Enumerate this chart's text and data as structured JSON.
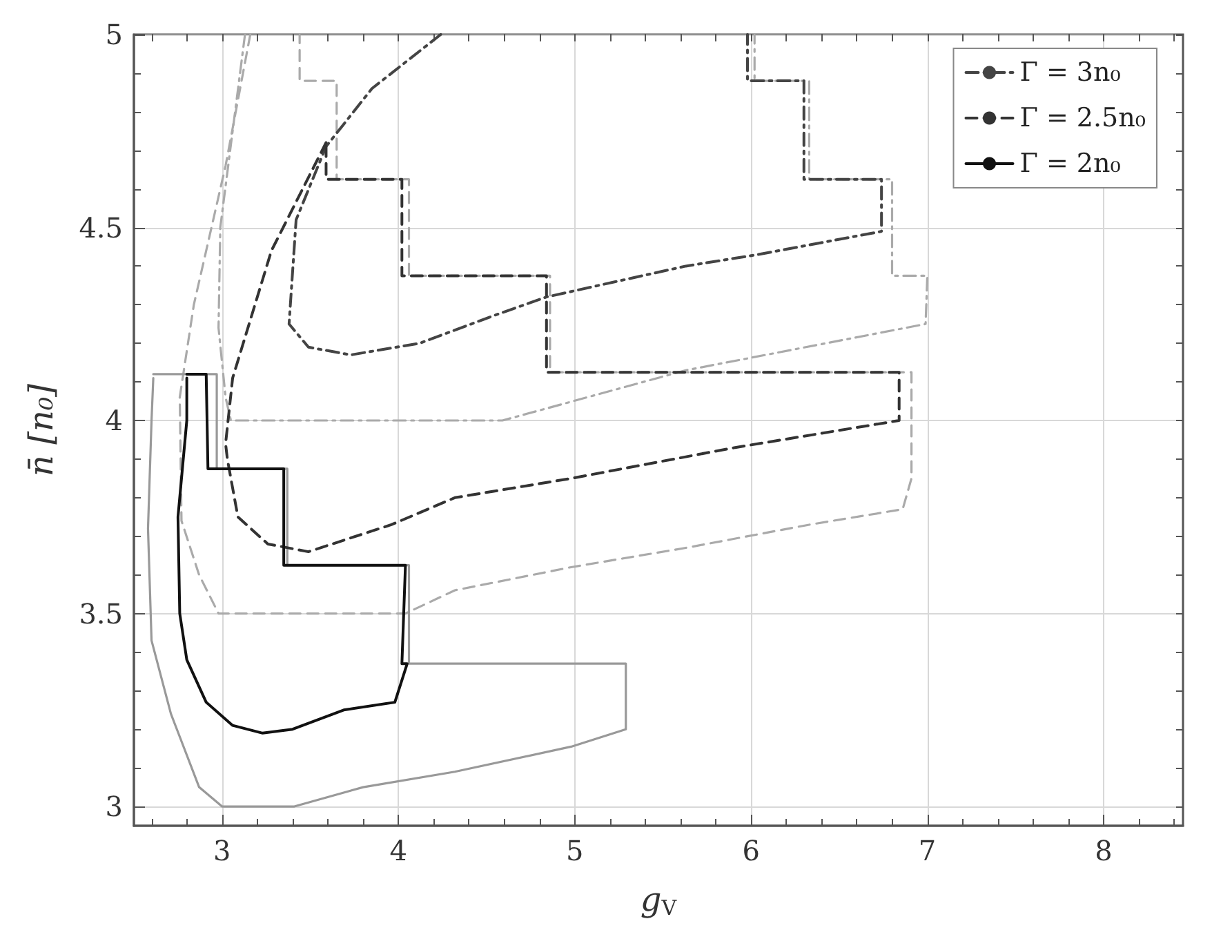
{
  "chart_data": {
    "type": "line",
    "xlabel": "g$_{V}$",
    "ylabel": "n̄ [n₀]",
    "xlim": [
      2.5,
      8.45
    ],
    "ylim": [
      2.95,
      5
    ],
    "xticks": [
      3,
      4,
      5,
      6,
      7,
      8
    ],
    "yticks": [
      3,
      3.5,
      4,
      4.5,
      5
    ],
    "grid": true,
    "legend": "top right",
    "marker": "none",
    "series": [
      {
        "name": "Γ = 3n₀",
        "color": "#444444",
        "line_style": "dashdot",
        "x": [
          4.24,
          3.85,
          3.59,
          3.42,
          3.38,
          3.49,
          3.73,
          4.12,
          4.53,
          4.84,
          5.63,
          6.04,
          6.74,
          6.74,
          6.3,
          6.3,
          5.98,
          5.98
        ],
        "values": [
          5.0,
          4.86,
          4.71,
          4.52,
          4.25,
          4.19,
          4.17,
          4.2,
          4.27,
          4.32,
          4.4,
          4.43,
          4.49,
          4.625,
          4.625,
          4.88,
          4.88,
          5.0
        ]
      },
      {
        "color": "#aaaaaa",
        "line_style": "dashdot",
        "x": [
          3.13,
          2.99,
          2.98,
          3.02,
          3.05,
          4.59,
          5.63,
          6.99,
          7.0,
          6.8,
          6.8,
          6.33,
          6.33,
          6.02,
          6.02
        ],
        "values": [
          5.0,
          4.5,
          4.24,
          4.06,
          4.0,
          4.0,
          4.13,
          4.25,
          4.375,
          4.375,
          4.625,
          4.625,
          4.88,
          4.88,
          5.0
        ]
      },
      {
        "name": "Γ = 2.5n₀",
        "color": "#333333",
        "line_style": "dashed",
        "x": [
          3.59,
          3.28,
          3.06,
          3.02,
          3.03,
          3.09,
          3.26,
          3.49,
          3.96,
          4.32,
          4.98,
          5.91,
          6.84,
          6.84,
          4.84,
          4.84,
          4.02,
          4.02,
          3.59,
          3.59
        ],
        "values": [
          4.72,
          4.44,
          4.11,
          3.94,
          3.9,
          3.75,
          3.68,
          3.66,
          3.73,
          3.8,
          3.85,
          3.93,
          4.0,
          4.125,
          4.125,
          4.375,
          4.375,
          4.625,
          4.625,
          4.71
        ]
      },
      {
        "color": "#aaaaaa",
        "line_style": "dashed",
        "x": [
          3.16,
          3.02,
          2.84,
          2.76,
          2.77,
          2.87,
          2.98,
          4.04,
          4.32,
          4.98,
          5.63,
          6.33,
          6.86,
          6.91,
          6.91,
          4.86,
          4.86,
          4.06,
          4.06,
          3.65,
          3.65,
          3.44,
          3.44
        ],
        "values": [
          5.0,
          4.66,
          4.3,
          4.06,
          3.74,
          3.6,
          3.5,
          3.5,
          3.56,
          3.62,
          3.67,
          3.73,
          3.77,
          3.85,
          4.125,
          4.125,
          4.375,
          4.375,
          4.625,
          4.625,
          4.88,
          4.88,
          5.0
        ]
      },
      {
        "name": "Γ = 2n₀",
        "color": "#111111",
        "line_style": "solid",
        "x": [
          2.8,
          2.91,
          2.92,
          3.35,
          3.35,
          4.04,
          4.02,
          4.05,
          3.98,
          3.69,
          3.4,
          3.23,
          3.06,
          2.91,
          2.8,
          2.76,
          2.75,
          2.8,
          2.8
        ],
        "values": [
          4.12,
          4.12,
          3.875,
          3.875,
          3.625,
          3.625,
          3.37,
          3.37,
          3.27,
          3.25,
          3.2,
          3.19,
          3.21,
          3.27,
          3.38,
          3.5,
          3.75,
          4.0,
          4.11
        ]
      },
      {
        "color": "#999999",
        "line_style": "solid",
        "x": [
          2.61,
          2.97,
          2.97,
          3.37,
          3.37,
          4.06,
          4.06,
          5.29,
          5.29,
          4.98,
          4.32,
          3.8,
          3.41,
          3.0,
          2.87,
          2.71,
          2.6,
          2.58,
          2.6,
          2.61
        ],
        "values": [
          4.12,
          4.12,
          3.875,
          3.875,
          3.625,
          3.625,
          3.37,
          3.37,
          3.2,
          3.155,
          3.09,
          3.05,
          3.0,
          3.0,
          3.05,
          3.24,
          3.43,
          3.72,
          4.0,
          4.11
        ]
      }
    ]
  }
}
